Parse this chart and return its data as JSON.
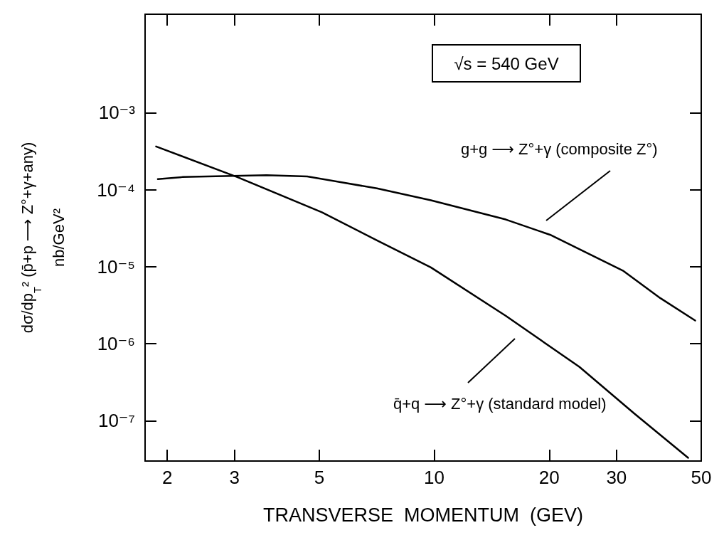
{
  "chart_data": {
    "type": "line",
    "xlabel": "TRANSVERSE  MOMENTUM  (GEV)",
    "ylabel": "dσ/dp$_{T}$² (p̄+p ⟶ Z°+γ+any)\nnb/GeV²",
    "log": "xy",
    "xlim": [
      1.75,
      50
    ],
    "ylim": [
      3e-08,
      0.019
    ],
    "xticks": [
      2,
      3,
      5,
      10,
      20,
      30,
      50
    ],
    "yticks": [
      {
        "value": 0.001,
        "label": "10⁻³"
      },
      {
        "value": 0.0001,
        "label": "10⁻⁴"
      },
      {
        "value": 1e-05,
        "label": "10⁻⁵"
      },
      {
        "value": 1e-06,
        "label": "10⁻⁶"
      },
      {
        "value": 1e-07,
        "label": "10⁻⁷"
      }
    ],
    "grid": false,
    "legend": false,
    "marker": "none",
    "line_style": "solid",
    "annotations": [
      "√s = 540 GeV"
    ],
    "series": [
      {
        "name": "g+g ⟶ Z°+γ (composite Z°)",
        "color": "#000000",
        "x": [
          1.89,
          2.19,
          3.64,
          4.65,
          7.08,
          9.8,
          15.4,
          20.1,
          31.3,
          39.1,
          48.2
        ],
        "values": [
          0.000137,
          0.000146,
          0.000154,
          0.000149,
          0.000104,
          7.3e-05,
          4.1e-05,
          2.6e-05,
          8.8e-06,
          3.9e-06,
          2e-06
        ]
      },
      {
        "name": "q̄+q ⟶ Z°+γ (standard model)",
        "color": "#000000",
        "x": [
          1.87,
          3.05,
          5.08,
          7.08,
          9.8,
          15.4,
          24,
          33.4,
          46.2
        ],
        "values": [
          0.000365,
          0.000146,
          5.1e-05,
          2.2e-05,
          9.8e-06,
          2.3e-06,
          5e-07,
          1.24e-07,
          3.3e-08
        ]
      }
    ]
  }
}
